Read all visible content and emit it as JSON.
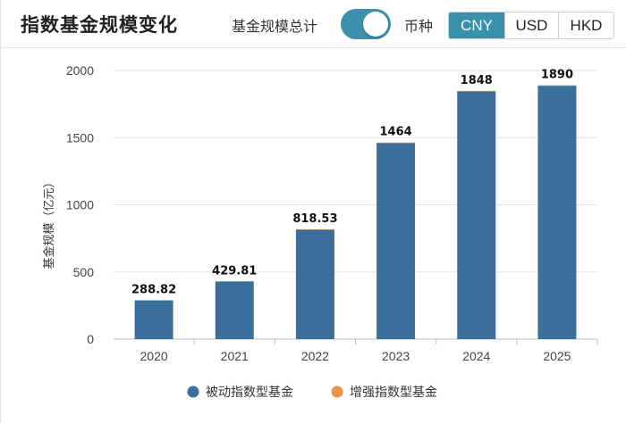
{
  "header": {
    "title": "指数基金规模变化",
    "total_label": "基金规模总计",
    "toggle_on": true,
    "currency_label": "币种",
    "currencies": [
      "CNY",
      "USD",
      "HKD"
    ],
    "selected_currency": "CNY"
  },
  "colors": {
    "accent": "#3b90ad",
    "passive": "#3b6f9b",
    "enhanced": "#e8944a"
  },
  "chart_data": {
    "type": "bar",
    "stacked": true,
    "categories": [
      "2020",
      "2021",
      "2022",
      "2023",
      "2024",
      "2025"
    ],
    "series": [
      {
        "name": "被动指数型基金",
        "values": [
          288.82,
          429.81,
          814.53,
          1460,
          1844,
          1886
        ],
        "color": "#3b6f9b"
      },
      {
        "name": "增强指数型基金",
        "values": [
          0,
          0,
          4,
          4,
          4,
          4
        ],
        "color": "#e8944a"
      }
    ],
    "totals": [
      "288.82",
      "429.81",
      "818.53",
      "1464",
      "1848",
      "1890"
    ],
    "ylabel": "基金规模（亿元）",
    "xlabel": "",
    "ylim": [
      0,
      2000
    ],
    "yticks": [
      "0",
      "500",
      "1000",
      "1500",
      "2000"
    ],
    "grid": true,
    "legend_position": "bottom"
  }
}
